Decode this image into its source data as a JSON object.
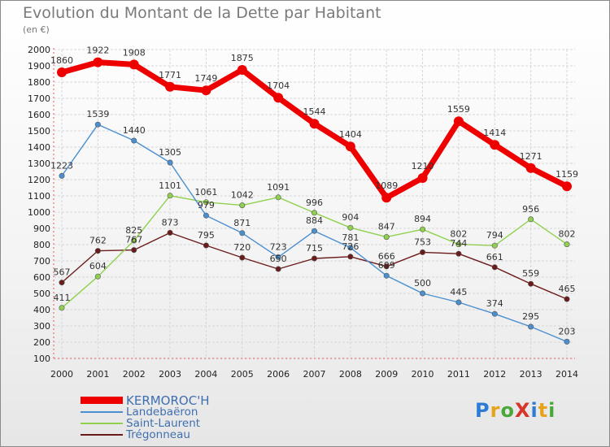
{
  "title": "Evolution du Montant de la Dette par Habitant",
  "subtitle": "(en €)",
  "logo": "ProXiti",
  "logo_colors": [
    "#2e7bd6",
    "#e8a21a",
    "#4aa83a",
    "#d7342a",
    "#2e7bd6",
    "#e8a21a",
    "#4aa83a"
  ],
  "chart_data": {
    "type": "line",
    "title": "Evolution du Montant de la Dette par Habitant",
    "ylabel": "(en €)",
    "x": [
      2000,
      2001,
      2002,
      2003,
      2004,
      2005,
      2006,
      2007,
      2008,
      2009,
      2010,
      2011,
      2012,
      2013,
      2014
    ],
    "ylim": [
      100,
      2000
    ],
    "yticks": [
      100,
      200,
      300,
      400,
      500,
      600,
      700,
      800,
      900,
      1000,
      1100,
      1200,
      1300,
      1400,
      1500,
      1600,
      1700,
      1800,
      1900,
      2000
    ],
    "grid": true,
    "legend_position": "bottom-left",
    "series": [
      {
        "name": "Trégonneau",
        "color": "#6b1b1b",
        "values": [
          567,
          762,
          767,
          873,
          795,
          720,
          650,
          715,
          726,
          666,
          753,
          744,
          661,
          559,
          465
        ]
      },
      {
        "name": "Saint-Laurent",
        "color": "#8fd14f",
        "values": [
          411,
          604,
          825,
          1101,
          1061,
          1042,
          1091,
          996,
          904,
          847,
          894,
          802,
          794,
          956,
          802
        ]
      },
      {
        "name": "Landebaëron",
        "color": "#4a8fd0",
        "values": [
          1223,
          1539,
          1440,
          1305,
          979,
          871,
          723,
          884,
          781,
          609,
          500,
          445,
          374,
          295,
          203
        ]
      },
      {
        "name": "KERMOROC'H",
        "color": "#ee0000",
        "values": [
          1860,
          1922,
          1908,
          1771,
          1749,
          1875,
          1704,
          1544,
          1404,
          1089,
          1210,
          1559,
          1414,
          1271,
          1159
        ]
      }
    ]
  }
}
